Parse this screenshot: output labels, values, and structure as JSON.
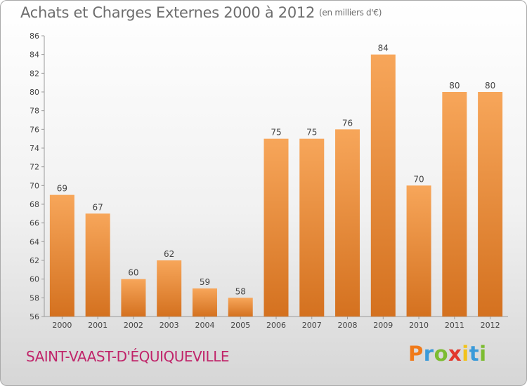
{
  "header": {
    "title": "Achats et Charges Externes 2000 à 2012",
    "unit": "(en milliers d'€)"
  },
  "footer": {
    "commune": "SAINT-VAAST-D'ÉQUIQUEVILLE",
    "logo": "Proxiti"
  },
  "colors": {
    "bar_top": "#f7a65a",
    "bar_bottom": "#d4711f",
    "title": "#6d6d6d",
    "commune": "#c0256a",
    "logo_letters": [
      "#f07a1a",
      "#3a9ad9",
      "#7cbc31",
      "#e2382d",
      "#f2c31b",
      "#3a9ad9",
      "#7cbc31"
    ]
  },
  "chart_data": {
    "type": "bar",
    "title": "Achats et Charges Externes 2000 à 2012",
    "subtitle": "(en milliers d'€)",
    "xlabel": "",
    "ylabel": "",
    "categories": [
      "2000",
      "2001",
      "2002",
      "2003",
      "2004",
      "2005",
      "2006",
      "2007",
      "2008",
      "2009",
      "2010",
      "2011",
      "2012"
    ],
    "values": [
      69,
      67,
      60,
      62,
      59,
      58,
      75,
      75,
      76,
      84,
      70,
      80,
      80
    ],
    "ylim": [
      56,
      86
    ],
    "yticks": [
      56,
      58,
      60,
      62,
      64,
      66,
      68,
      70,
      72,
      74,
      76,
      78,
      80,
      82,
      84,
      86
    ],
    "grid": false,
    "data_labels": true
  }
}
